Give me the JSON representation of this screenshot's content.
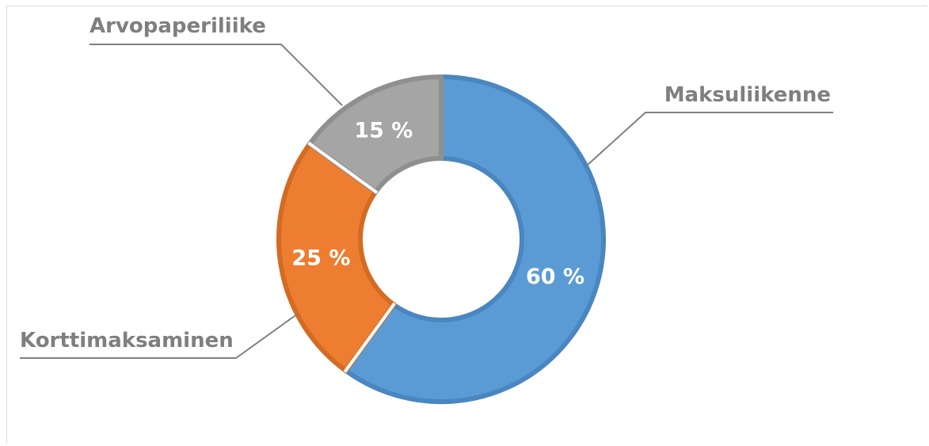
{
  "chart_data": {
    "type": "pie",
    "variant": "donut",
    "title": "",
    "slices": [
      {
        "name": "Maksuliikenne",
        "value": 60,
        "label": "60 %",
        "color": "#5b9bd5",
        "edge": "#4a86c0"
      },
      {
        "name": "Korttimaksaminen",
        "value": 25,
        "label": "25 %",
        "color": "#ed7d31",
        "edge": "#d46b22"
      },
      {
        "name": "Arvopaperiliike",
        "value": 15,
        "label": "15 %",
        "color": "#a5a5a5",
        "edge": "#8f8f8f"
      }
    ],
    "legend": "none",
    "data_labels": "inside",
    "category_labels": "outside-with-leader-lines"
  }
}
